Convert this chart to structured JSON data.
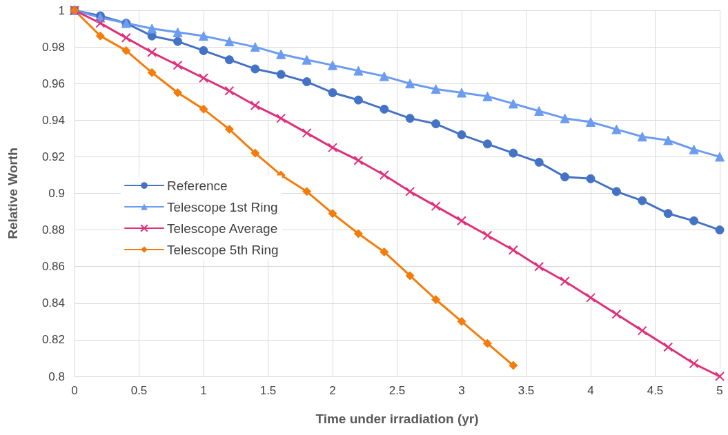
{
  "chart_data": {
    "type": "line",
    "xlabel": "Time under irradiation (yr)",
    "ylabel": "Relative Worth",
    "x": [
      0,
      0.2,
      0.4,
      0.6,
      0.8,
      1,
      1.2,
      1.4,
      1.6,
      1.8,
      2,
      2.2,
      2.4,
      2.6,
      2.8,
      3,
      3.2,
      3.4,
      3.6,
      3.8,
      4,
      4.2,
      4.4,
      4.6,
      4.8,
      5
    ],
    "series": [
      {
        "name": "Reference",
        "color": "#4472c4",
        "marker": "circle",
        "values": [
          1,
          0.997,
          0.993,
          0.986,
          0.983,
          0.978,
          0.973,
          0.968,
          0.965,
          0.961,
          0.955,
          0.951,
          0.946,
          0.941,
          0.938,
          0.932,
          0.927,
          0.922,
          0.917,
          0.909,
          0.908,
          0.901,
          0.896,
          0.889,
          0.885,
          0.88
        ]
      },
      {
        "name": "Telescope 1st Ring",
        "color": "#6b9cf0",
        "marker": "triangle",
        "values": [
          1,
          0.996,
          0.993,
          0.99,
          0.988,
          0.986,
          0.983,
          0.98,
          0.976,
          0.973,
          0.97,
          0.967,
          0.964,
          0.96,
          0.957,
          0.955,
          0.953,
          0.949,
          0.945,
          0.941,
          0.939,
          0.935,
          0.931,
          0.929,
          0.924,
          0.92
        ]
      },
      {
        "name": "Telescope Average",
        "color": "#e0307a",
        "marker": "cross",
        "values": [
          1,
          0.993,
          0.985,
          0.977,
          0.97,
          0.963,
          0.956,
          0.948,
          0.941,
          0.933,
          0.925,
          0.918,
          0.91,
          0.901,
          0.893,
          0.885,
          0.877,
          0.869,
          0.86,
          0.852,
          0.843,
          0.834,
          0.825,
          0.816,
          0.807,
          0.8
        ]
      },
      {
        "name": "Telescope 5th Ring",
        "color": "#f57c0a",
        "marker": "diamond",
        "values": [
          1,
          0.986,
          0.978,
          0.966,
          0.955,
          0.946,
          0.935,
          0.922,
          0.91,
          0.901,
          0.889,
          0.878,
          0.868,
          0.855,
          0.842,
          0.83,
          0.818,
          0.806,
          null,
          null,
          null,
          null,
          null,
          null,
          null,
          null
        ]
      }
    ],
    "xlim": [
      0,
      5
    ],
    "xticks": [
      0,
      0.5,
      1,
      1.5,
      2,
      2.5,
      3,
      3.5,
      4,
      4.5,
      5
    ],
    "ylim": [
      0.8,
      1
    ],
    "yticks": [
      0.8,
      0.82,
      0.84,
      0.86,
      0.88,
      0.9,
      0.92,
      0.94,
      0.96,
      0.98,
      1
    ],
    "grid": true,
    "legend": "left",
    "line_style": "solid"
  }
}
